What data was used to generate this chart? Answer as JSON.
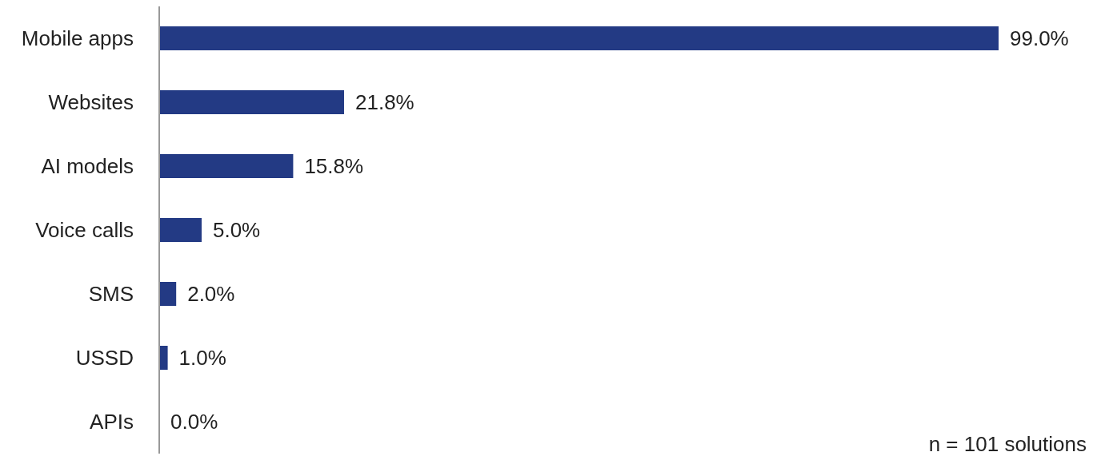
{
  "chart_data": {
    "type": "bar",
    "orientation": "horizontal",
    "categories": [
      "Mobile apps",
      "Websites",
      "AI models",
      "Voice calls",
      "SMS",
      "USSD",
      "APIs"
    ],
    "values": [
      99.0,
      21.8,
      15.8,
      5.0,
      2.0,
      1.0,
      0.0
    ],
    "value_labels": [
      "99.0%",
      "21.8%",
      "15.8%",
      "5.0%",
      "2.0%",
      "1.0%",
      "0.0%"
    ],
    "color": "#233a84",
    "annotations": [
      "n = 101 solutions"
    ]
  }
}
